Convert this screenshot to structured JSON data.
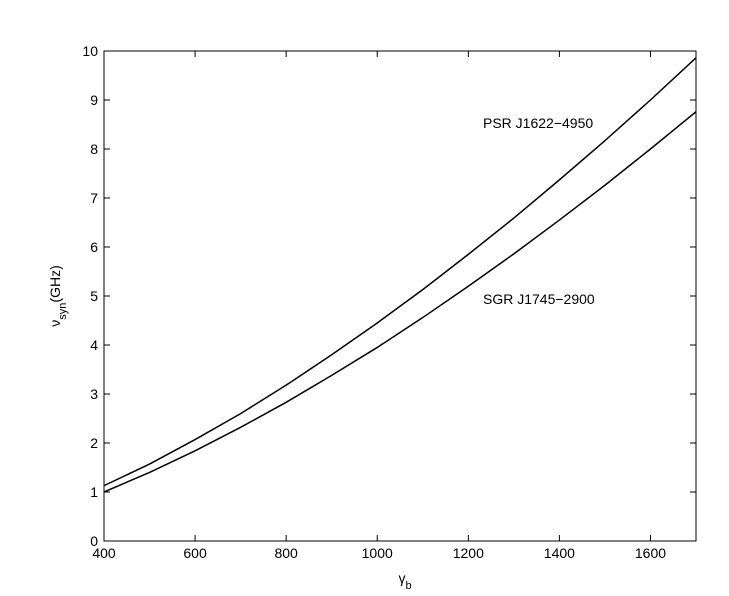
{
  "chart_data": {
    "type": "line",
    "x_label": {
      "symbol": "γ",
      "subscript": "b"
    },
    "y_label": {
      "symbol": "ν",
      "subscript": "syn",
      "unit": "(GHz)"
    },
    "x": [
      400,
      500,
      600,
      700,
      800,
      900,
      1000,
      1100,
      1200,
      1300,
      1400,
      1500,
      1600,
      1700
    ],
    "series": [
      {
        "name": "PSR J1622−4950",
        "color": "#000000",
        "values": [
          1.13,
          1.57,
          2.07,
          2.6,
          3.18,
          3.8,
          4.45,
          5.13,
          5.85,
          6.59,
          7.37,
          8.17,
          9.0,
          9.86
        ]
      },
      {
        "name": "SGR J1745−2900",
        "color": "#000000",
        "values": [
          1.0,
          1.4,
          1.84,
          2.32,
          2.83,
          3.38,
          3.95,
          4.56,
          5.2,
          5.86,
          6.55,
          7.26,
          8.0,
          8.76
        ]
      }
    ],
    "xlim": [
      400,
      1700
    ],
    "ylim": [
      0,
      10
    ],
    "xticks": [
      400,
      600,
      800,
      1000,
      1200,
      1400,
      1600
    ],
    "yticks": [
      0,
      1,
      2,
      3,
      4,
      5,
      6,
      7,
      8,
      9,
      10
    ],
    "grid": false
  }
}
